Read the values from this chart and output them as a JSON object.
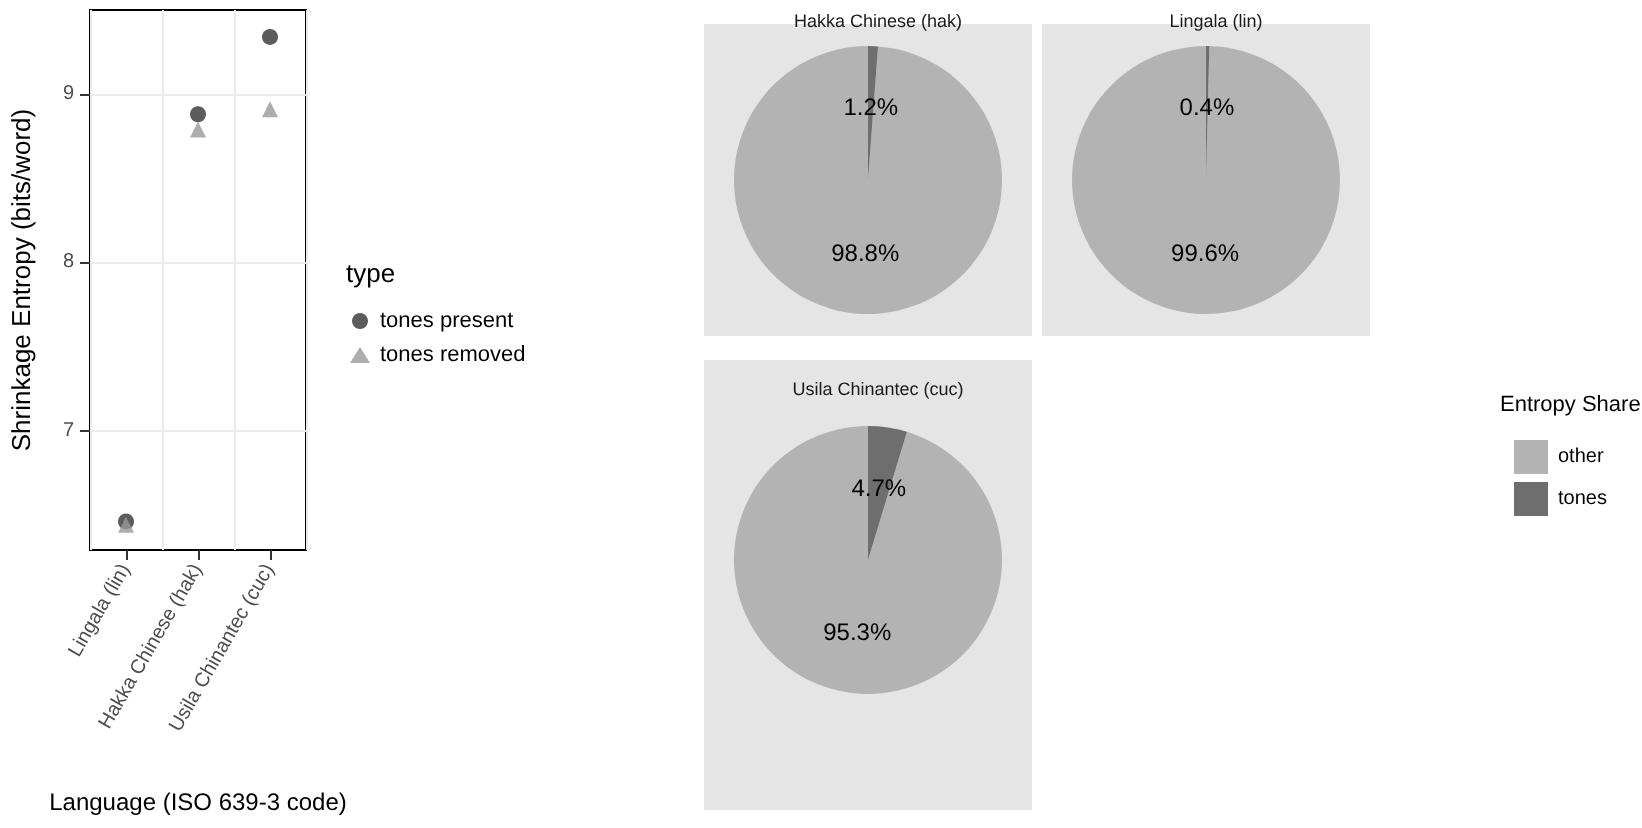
{
  "chart_data": [
    {
      "type": "scatter",
      "categories": [
        "Lingala (lin)",
        "Hakka Chinese (hak)",
        "Usila Chinantec (cuc)"
      ],
      "xlabel": "Language (ISO 639-3 code)",
      "ylabel": "Shrinkage Entropy (bits/word)",
      "legend_title": "type",
      "ylim": [
        6.29,
        9.5
      ],
      "yticks": [
        7,
        8,
        9
      ],
      "grid": true,
      "legend": "right",
      "series": [
        {
          "name": "tones present",
          "color": "#333333",
          "marker": "circle",
          "values": [
            6.46,
            8.88,
            9.34
          ]
        },
        {
          "name": "tones removed",
          "color": "#999999",
          "marker": "triangle",
          "values": [
            6.44,
            8.79,
            8.91
          ]
        }
      ]
    },
    {
      "type": "pie",
      "categories": [
        "other",
        "tones"
      ],
      "legend": "right",
      "legend_title": "Entropy Share",
      "series": [
        {
          "name": "Hakka Chinese (hak)",
          "values": [
            98.8,
            1.2
          ],
          "colors": [
            "#b3b3b3",
            "#6e6e6e"
          ],
          "value_labels": [
            "98.8%",
            "1.2%"
          ]
        },
        {
          "name": "Lingala (lin)",
          "values": [
            99.6,
            0.4
          ],
          "colors": [
            "#b3b3b3",
            "#6e6e6e"
          ],
          "value_labels": [
            "99.6%",
            "0.4%"
          ]
        },
        {
          "name": "Usila Chinantec (cuc)",
          "values": [
            95.3,
            4.7
          ],
          "colors": [
            "#b3b3b3",
            "#6e6e6e"
          ],
          "value_labels": [
            "95.3%",
            "4.7%"
          ]
        }
      ]
    }
  ]
}
